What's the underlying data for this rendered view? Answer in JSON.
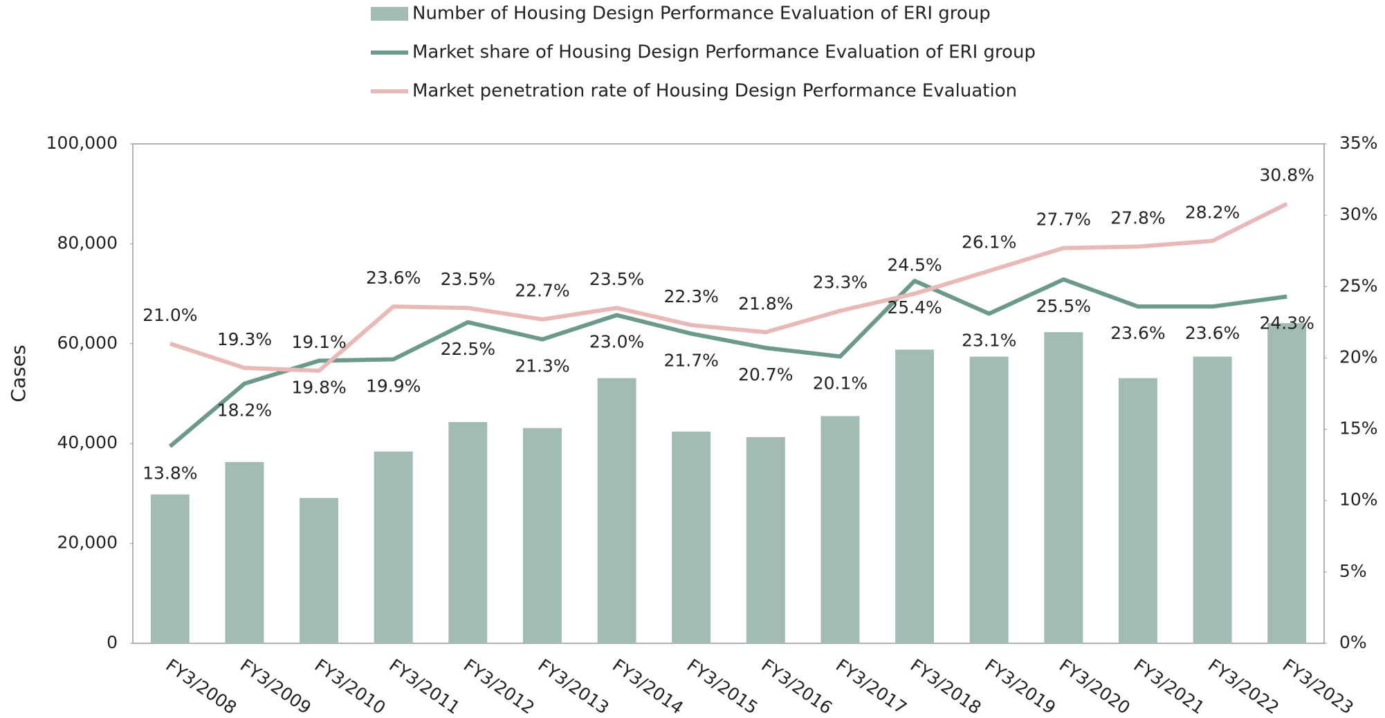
{
  "chart_data": {
    "type": "bar",
    "y_label": "Cases",
    "categories": [
      "FY3/2008",
      "FY3/2009",
      "FY3/2010",
      "FY3/2011",
      "FY3/2012",
      "FY3/2013",
      "FY3/2014",
      "FY3/2015",
      "FY3/2016",
      "FY3/2017",
      "FY3/2018",
      "FY3/2019",
      "FY3/2020",
      "FY3/2021",
      "FY3/2022",
      "FY3/2023"
    ],
    "series": [
      {
        "name": "Number of Housing Design Performance Evaluation of ERI group",
        "type": "bar",
        "color": "#a2bcb4",
        "values": [
          29800,
          36300,
          29100,
          38400,
          44300,
          43100,
          53100,
          42400,
          41300,
          45500,
          58800,
          57400,
          62300,
          53100,
          57400,
          64100
        ]
      },
      {
        "name": "Market share of Housing Design Performance Evaluation of ERI group",
        "type": "line",
        "axis": "y2",
        "color": "#6b9a88",
        "label_position": "below",
        "values": [
          13.8,
          18.2,
          19.8,
          19.9,
          22.5,
          21.3,
          23.0,
          21.7,
          20.7,
          20.1,
          25.4,
          23.1,
          25.5,
          23.6,
          23.6,
          24.3
        ],
        "value_labels": [
          "13.8%",
          "18.2%",
          "19.8%",
          "19.9%",
          "22.5%",
          "21.3%",
          "23.0%",
          "21.7%",
          "20.7%",
          "20.1%",
          "25.4%",
          "23.1%",
          "25.5%",
          "23.6%",
          "23.6%",
          "24.3%"
        ]
      },
      {
        "name": "Market penetration rate of Housing Design Performance Evaluation",
        "type": "line",
        "axis": "y2",
        "color": "#e8b9b6",
        "label_position": "above",
        "values": [
          21.0,
          19.3,
          19.1,
          23.6,
          23.5,
          22.7,
          23.5,
          22.3,
          21.8,
          23.3,
          24.5,
          26.1,
          27.7,
          27.8,
          28.2,
          30.8
        ],
        "value_labels": [
          "21.0%",
          "19.3%",
          "19.1%",
          "23.6%",
          "23.5%",
          "22.7%",
          "23.5%",
          "22.3%",
          "21.8%",
          "23.3%",
          "24.5%",
          "26.1%",
          "27.7%",
          "27.8%",
          "28.2%",
          "30.8%"
        ]
      }
    ],
    "ylim": [
      0,
      100000
    ],
    "yticks": [
      {
        "value": 0,
        "label": "0"
      },
      {
        "value": 20000,
        "label": "20,000"
      },
      {
        "value": 40000,
        "label": "40,000"
      },
      {
        "value": 60000,
        "label": "60,000"
      },
      {
        "value": 80000,
        "label": "80,000"
      },
      {
        "value": 100000,
        "label": "100,000"
      }
    ],
    "y2lim": [
      0,
      35
    ],
    "y2ticks": [
      {
        "value": 0,
        "label": "0%"
      },
      {
        "value": 5,
        "label": "5%"
      },
      {
        "value": 10,
        "label": "10%"
      },
      {
        "value": 15,
        "label": "15%"
      },
      {
        "value": 20,
        "label": "20%"
      },
      {
        "value": 25,
        "label": "25%"
      },
      {
        "value": 30,
        "label": "30%"
      },
      {
        "value": 35,
        "label": "35%"
      }
    ],
    "grid": false
  }
}
